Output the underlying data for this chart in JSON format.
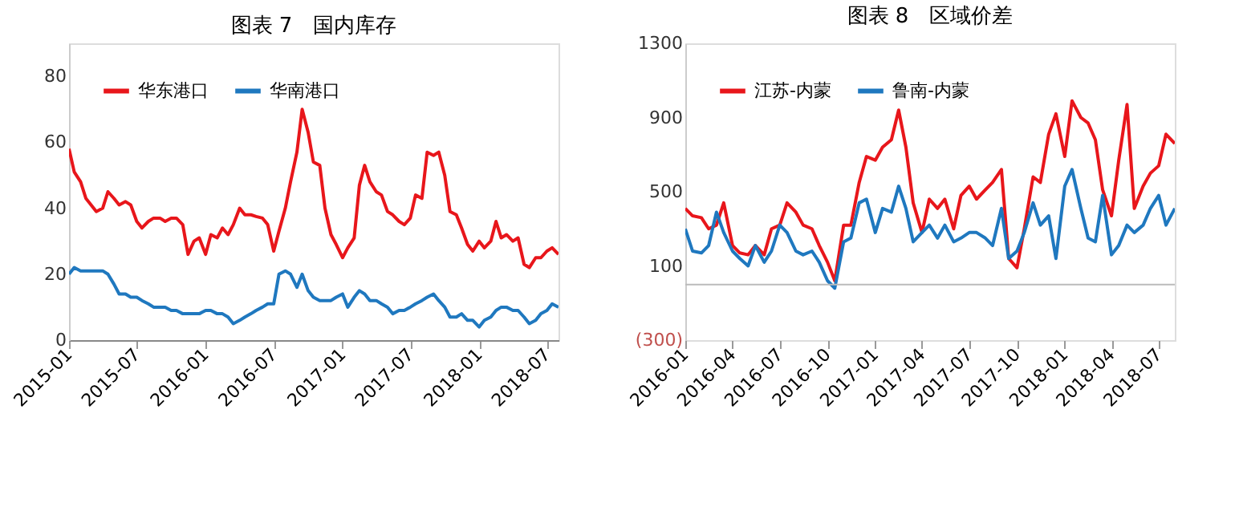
{
  "chart_data": [
    {
      "type": "line",
      "title": "图表 7　国内库存",
      "x": [
        "2015-01-01",
        "2015-01-15",
        "2015-02-01",
        "2015-02-15",
        "2015-03-01",
        "2015-03-15",
        "2015-04-01",
        "2015-04-15",
        "2015-05-01",
        "2015-05-15",
        "2015-06-01",
        "2015-06-15",
        "2015-07-01",
        "2015-07-15",
        "2015-08-01",
        "2015-08-15",
        "2015-09-01",
        "2015-09-15",
        "2015-10-01",
        "2015-10-15",
        "2015-11-01",
        "2015-11-15",
        "2015-12-01",
        "2015-12-15",
        "2016-01-01",
        "2016-01-15",
        "2016-02-01",
        "2016-02-15",
        "2016-03-01",
        "2016-03-15",
        "2016-04-01",
        "2016-04-15",
        "2016-05-01",
        "2016-05-15",
        "2016-06-01",
        "2016-06-15",
        "2016-07-01",
        "2016-07-15",
        "2016-08-01",
        "2016-08-15",
        "2016-09-01",
        "2016-09-15",
        "2016-10-01",
        "2016-10-15",
        "2016-11-01",
        "2016-11-15",
        "2016-12-01",
        "2016-12-15",
        "2017-01-01",
        "2017-01-15",
        "2017-02-01",
        "2017-02-15",
        "2017-03-01",
        "2017-03-15",
        "2017-04-01",
        "2017-04-15",
        "2017-05-01",
        "2017-05-15",
        "2017-06-01",
        "2017-06-15",
        "2017-07-01",
        "2017-07-15",
        "2017-08-01",
        "2017-08-15",
        "2017-09-01",
        "2017-09-15",
        "2017-10-01",
        "2017-10-15",
        "2017-11-01",
        "2017-11-15",
        "2017-12-01",
        "2017-12-15",
        "2018-01-01",
        "2018-01-15",
        "2018-02-01",
        "2018-02-15",
        "2018-03-01",
        "2018-03-15",
        "2018-04-01",
        "2018-04-15",
        "2018-05-01",
        "2018-05-15",
        "2018-06-01",
        "2018-06-15",
        "2018-07-01",
        "2018-07-15",
        "2018-08-01"
      ],
      "series": [
        {
          "name": "华东港口",
          "color": "#e8161b",
          "values": [
            58,
            51,
            48,
            43,
            41,
            39,
            40,
            45,
            43,
            41,
            42,
            41,
            36,
            34,
            36,
            37,
            37,
            36,
            37,
            37,
            35,
            26,
            30,
            31,
            26,
            32,
            31,
            34,
            32,
            35,
            40,
            38,
            38,
            37.5,
            37,
            35,
            27,
            33,
            40,
            48,
            57,
            70,
            63,
            54,
            53,
            40,
            32,
            29,
            25,
            28,
            31,
            47,
            53,
            48,
            45,
            44,
            39,
            38,
            36,
            35,
            37,
            44,
            43,
            57,
            56,
            57,
            50,
            39,
            38,
            34,
            29,
            27,
            30,
            28,
            30,
            36,
            31,
            32,
            30,
            31,
            23,
            22,
            25,
            25,
            27,
            28,
            26
          ]
        },
        {
          "name": "华南港口",
          "color": "#1f78bf",
          "values": [
            20,
            22,
            21,
            21,
            21,
            21,
            21,
            20,
            17,
            14,
            14,
            13,
            13,
            12,
            11,
            10,
            10,
            10,
            9,
            9,
            8,
            8,
            8,
            8,
            9,
            9,
            8,
            8,
            7,
            5,
            6,
            7,
            8,
            9,
            10,
            11,
            11,
            20,
            21,
            20,
            16,
            20,
            15,
            13,
            12,
            12,
            12,
            13,
            14,
            10,
            13,
            15,
            14,
            12,
            12,
            11,
            10,
            8,
            9,
            9,
            10,
            11,
            12,
            13,
            14,
            12,
            10,
            7,
            7,
            8,
            6,
            6,
            4,
            6,
            7,
            9,
            10,
            10,
            9,
            9,
            7,
            5,
            6,
            8,
            9,
            11,
            10
          ]
        }
      ],
      "xlim": [
        "2015-01",
        "2018-08"
      ],
      "xticks": [
        "2015-01",
        "2015-07",
        "2016-01",
        "2016-07",
        "2017-01",
        "2017-07",
        "2018-01",
        "2018-07"
      ],
      "ylim": [
        0,
        90
      ],
      "yticks": [
        0,
        20,
        40,
        60,
        80
      ],
      "legend": "top left",
      "grid": false
    },
    {
      "type": "line",
      "title": "图表 8　区域价差",
      "x": [
        "2016-01-01",
        "2016-01-15",
        "2016-02-01",
        "2016-02-15",
        "2016-03-01",
        "2016-03-15",
        "2016-04-01",
        "2016-04-15",
        "2016-05-01",
        "2016-05-15",
        "2016-06-01",
        "2016-06-15",
        "2016-07-01",
        "2016-07-15",
        "2016-08-01",
        "2016-08-15",
        "2016-09-01",
        "2016-09-15",
        "2016-10-01",
        "2016-10-15",
        "2016-11-01",
        "2016-11-15",
        "2016-12-01",
        "2016-12-15",
        "2017-01-01",
        "2017-01-15",
        "2017-02-01",
        "2017-02-15",
        "2017-03-01",
        "2017-03-15",
        "2017-04-01",
        "2017-04-15",
        "2017-05-01",
        "2017-05-15",
        "2017-06-01",
        "2017-06-15",
        "2017-07-01",
        "2017-07-15",
        "2017-08-01",
        "2017-08-15",
        "2017-09-01",
        "2017-09-15",
        "2017-10-01",
        "2017-10-15",
        "2017-11-01",
        "2017-11-15",
        "2017-12-01",
        "2017-12-15",
        "2018-01-01",
        "2018-01-15",
        "2018-02-01",
        "2018-02-15",
        "2018-03-01",
        "2018-03-15",
        "2018-04-01",
        "2018-04-15",
        "2018-05-01",
        "2018-05-15",
        "2018-06-01",
        "2018-06-15",
        "2018-07-01",
        "2018-07-15",
        "2018-08-01"
      ],
      "series": [
        {
          "name": "江苏-内蒙",
          "color": "#e8161b",
          "values": [
            410,
            370,
            360,
            300,
            320,
            440,
            210,
            170,
            160,
            210,
            160,
            300,
            320,
            440,
            390,
            320,
            300,
            210,
            120,
            20,
            320,
            320,
            550,
            690,
            670,
            740,
            780,
            940,
            740,
            440,
            280,
            460,
            410,
            460,
            300,
            480,
            530,
            460,
            510,
            550,
            620,
            140,
            90,
            300,
            580,
            550,
            810,
            920,
            690,
            990,
            900,
            870,
            780,
            510,
            370,
            670,
            970,
            410,
            530,
            600,
            640,
            810,
            760
          ]
        },
        {
          "name": "鲁南-内蒙",
          "color": "#1f78bf",
          "values": [
            300,
            180,
            170,
            210,
            390,
            280,
            180,
            140,
            100,
            210,
            120,
            180,
            320,
            280,
            180,
            160,
            180,
            120,
            20,
            -20,
            230,
            250,
            440,
            460,
            280,
            410,
            390,
            530,
            410,
            230,
            280,
            320,
            250,
            320,
            230,
            250,
            280,
            280,
            250,
            210,
            410,
            140,
            180,
            280,
            440,
            320,
            370,
            140,
            530,
            620,
            410,
            250,
            230,
            480,
            160,
            210,
            320,
            280,
            320,
            410,
            480,
            320,
            410
          ]
        }
      ],
      "xlim": [
        "2016-01",
        "2018-08"
      ],
      "xticks": [
        "2016-01",
        "2016-04",
        "2016-07",
        "2016-10",
        "2017-01",
        "2017-04",
        "2017-07",
        "2017-10",
        "2018-01",
        "2018-04",
        "2018-07"
      ],
      "ylim": [
        -300,
        1300
      ],
      "yticks": [
        {
          "value": -300,
          "label": "(300)"
        },
        100,
        500,
        900,
        1300
      ],
      "ref_lines": [
        {
          "axis": "y",
          "value": 0
        }
      ],
      "legend": "top left",
      "grid": false
    }
  ]
}
